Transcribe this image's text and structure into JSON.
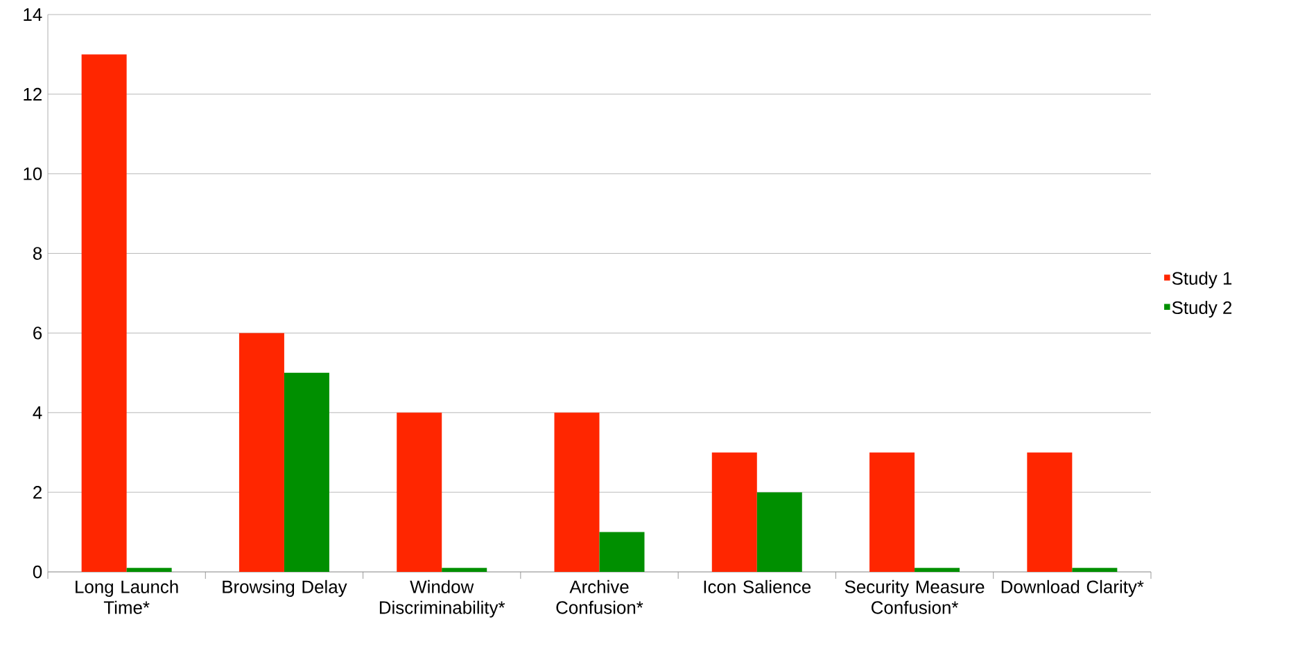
{
  "chart_data": {
    "type": "bar",
    "categories": [
      "Long Launch Time*",
      "Browsing Delay",
      "Window Discriminability*",
      "Archive Confusion*",
      "Icon Salience",
      "Security Measure Confusion*",
      "Download Clarity*"
    ],
    "series": [
      {
        "name": "Study 1",
        "color": "#ff2600",
        "values": [
          13,
          6,
          4,
          4,
          3,
          3,
          3
        ]
      },
      {
        "name": "Study 2",
        "color": "#008f00",
        "values": [
          0.1,
          5,
          0.1,
          1,
          2,
          0.1,
          0.1
        ]
      }
    ],
    "ylim": [
      0,
      14
    ],
    "yticks": [
      0,
      2,
      4,
      6,
      8,
      10,
      12,
      14
    ],
    "grid": "y",
    "legend": "right"
  }
}
